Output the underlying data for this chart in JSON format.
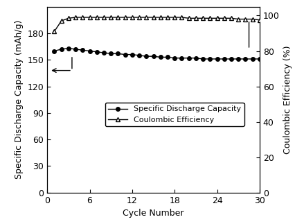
{
  "title": "",
  "xlabel": "Cycle Number",
  "ylabel_left": "Specific Discharge Capacity (mAh/g)",
  "ylabel_right": "Coulombic Efficiency (%)",
  "xlim": [
    0,
    30
  ],
  "ylim_left": [
    0,
    210
  ],
  "ylim_right": [
    0,
    105
  ],
  "yticks_left": [
    0,
    30,
    60,
    90,
    120,
    150,
    180
  ],
  "yticks_right": [
    0,
    20,
    40,
    60,
    80,
    100
  ],
  "xticks": [
    0,
    6,
    12,
    18,
    24,
    30
  ],
  "cycles": [
    1,
    2,
    3,
    4,
    5,
    6,
    7,
    8,
    9,
    10,
    11,
    12,
    13,
    14,
    15,
    16,
    17,
    18,
    19,
    20,
    21,
    22,
    23,
    24,
    25,
    26,
    27,
    28,
    29,
    30
  ],
  "discharge_capacity": [
    160,
    162,
    163,
    162,
    161,
    160,
    159,
    158,
    157,
    157,
    156,
    156,
    155,
    154,
    154,
    153,
    153,
    152,
    152,
    152,
    152,
    151,
    151,
    151,
    151,
    151,
    151,
    151,
    151,
    151
  ],
  "coulombic_efficiency": [
    91,
    97,
    98.5,
    99,
    99,
    99,
    99,
    99,
    99,
    99,
    99,
    99,
    99,
    99,
    99,
    99,
    99,
    99,
    99,
    98.5,
    98.5,
    98.5,
    98.5,
    98.5,
    98.5,
    98.5,
    98,
    98,
    98,
    97.5
  ],
  "capacity_color": "#000000",
  "efficiency_color": "#000000",
  "background_color": "#ffffff",
  "fontsize_axis_label": 9,
  "fontsize_tick": 9,
  "fontsize_legend": 8
}
